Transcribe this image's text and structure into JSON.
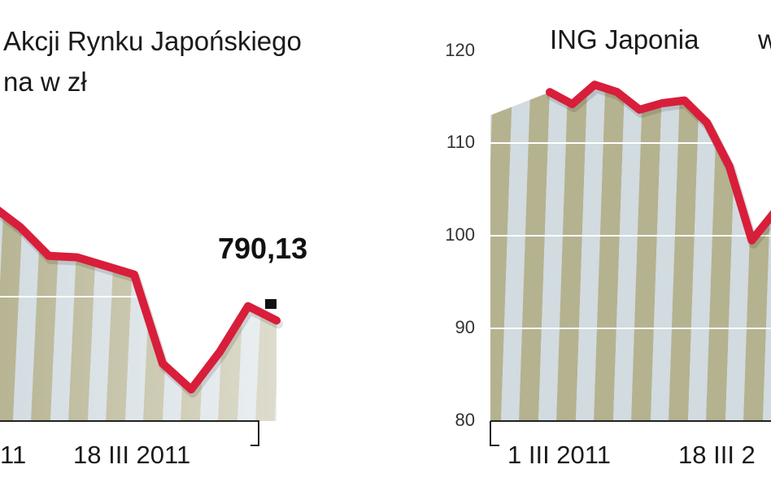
{
  "chart_data": [
    {
      "type": "line",
      "title": "Akcji Rynku Japońskiego",
      "subtitle": "na w zł",
      "x": [
        "11",
        "18 III 2011"
      ],
      "value_label": "790,13",
      "series": [
        {
          "x": [
            0,
            1,
            2,
            3,
            4,
            5,
            6,
            7,
            8,
            9,
            10
          ],
          "values": [
            870,
            855,
            835,
            834,
            828,
            822,
            760,
            742,
            768,
            800,
            790
          ]
        }
      ],
      "colors": {
        "line": "#d81e3a",
        "stripe_olive": "#a8a47c",
        "stripe_blue": "#c2cfd6",
        "grid": "#ffffff",
        "axis": "#222222"
      }
    },
    {
      "type": "line",
      "title": "ING Japonia",
      "title_suffix": "w",
      "yticks": [
        "120",
        "110",
        "100",
        "90",
        "80"
      ],
      "x": [
        "1 III 2011",
        "18 III 2"
      ],
      "ylim": [
        80,
        120
      ],
      "series": [
        {
          "x": [
            0,
            1,
            2,
            3,
            4,
            5,
            6,
            7,
            8,
            9,
            10
          ],
          "values": [
            115.5,
            114.2,
            116.3,
            115.5,
            113.6,
            114.3,
            114.6,
            112.2,
            107.5,
            99.5,
            102.5
          ]
        }
      ],
      "colors": {
        "line": "#d81e3a",
        "stripe_olive": "#a8a47c",
        "stripe_blue": "#c2cfd6",
        "grid": "#ffffff",
        "axis": "#222222"
      }
    }
  ]
}
